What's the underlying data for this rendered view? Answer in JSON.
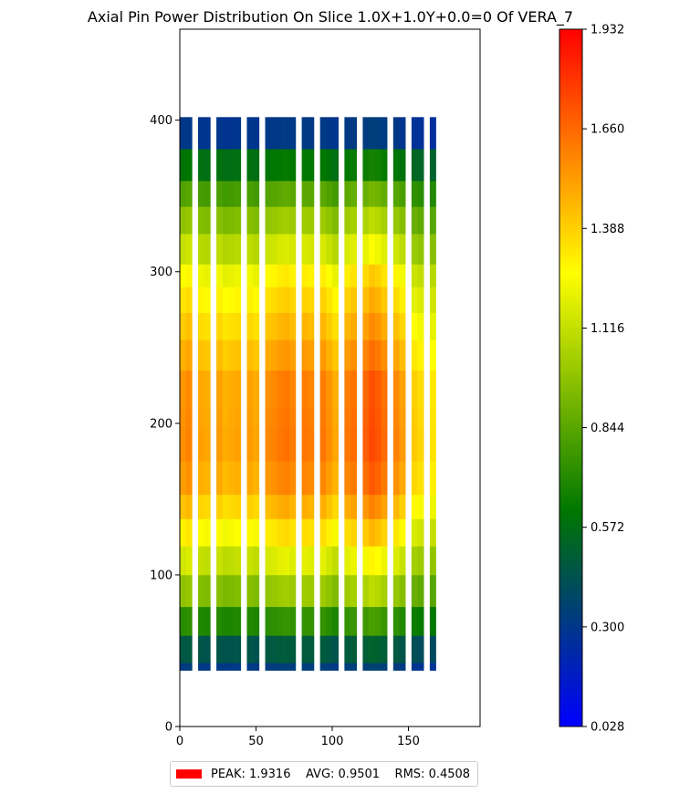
{
  "chart_data": {
    "type": "heatmap",
    "title": "Axial Pin Power Distribution On Slice 1.0X+1.0Y+0.0=0 Of VERA_7",
    "xlabel": "",
    "ylabel": "",
    "xlim": [
      0,
      197
    ],
    "ylim": [
      0,
      460
    ],
    "x_ticks": [
      "0",
      "50",
      "100",
      "150"
    ],
    "y_ticks": [
      "0",
      "100",
      "200",
      "300",
      "400"
    ],
    "colorbar": {
      "min": 0.028,
      "max": 1.932,
      "ticks": [
        "0.028",
        "0.300",
        "0.572",
        "0.844",
        "1.116",
        "1.388",
        "1.660",
        "1.932"
      ],
      "colors": [
        "#0000ff",
        "#007700",
        "#ffff00",
        "#ff0000"
      ]
    },
    "grid": false,
    "column_extent": [
      0,
      168
    ],
    "column_count": 42,
    "gap_columns": [
      2,
      5,
      10,
      13,
      19,
      22,
      26,
      29,
      34,
      37,
      40
    ],
    "column_factors": [
      1.0,
      1.02,
      1.0,
      0.97,
      0.96,
      1.0,
      0.98,
      0.95,
      0.96,
      0.97,
      1.0,
      0.98,
      0.96,
      1.0,
      1.01,
      1.02,
      1.04,
      1.05,
      1.03,
      1.0,
      1.04,
      1.03,
      1.0,
      1.04,
      1.0,
      0.96,
      1.0,
      1.04,
      1.06,
      1.0,
      1.08,
      1.12,
      1.1,
      1.06,
      1.0,
      1.02,
      0.98,
      1.0,
      0.9,
      0.88,
      1.0,
      0.86
    ],
    "axial_levels": [
      {
        "z0": 37,
        "z1": 42,
        "value": 0.32
      },
      {
        "z0": 42,
        "z1": 60,
        "value": 0.46
      },
      {
        "z0": 60,
        "z1": 79,
        "value": 0.72
      },
      {
        "z0": 79,
        "z1": 100,
        "value": 0.98
      },
      {
        "z0": 100,
        "z1": 119,
        "value": 1.15
      },
      {
        "z0": 119,
        "z1": 137,
        "value": 1.3
      },
      {
        "z0": 137,
        "z1": 153,
        "value": 1.42
      },
      {
        "z0": 153,
        "z1": 175,
        "value": 1.52
      },
      {
        "z0": 175,
        "z1": 198,
        "value": 1.56
      },
      {
        "z0": 198,
        "z1": 210,
        "value": 1.55
      },
      {
        "z0": 210,
        "z1": 235,
        "value": 1.54
      },
      {
        "z0": 235,
        "z1": 255,
        "value": 1.47
      },
      {
        "z0": 255,
        "z1": 273,
        "value": 1.4
      },
      {
        "z0": 273,
        "z1": 290,
        "value": 1.33
      },
      {
        "z0": 290,
        "z1": 305,
        "value": 1.26
      },
      {
        "z0": 305,
        "z1": 325,
        "value": 1.12
      },
      {
        "z0": 325,
        "z1": 343,
        "value": 0.98
      },
      {
        "z0": 343,
        "z1": 360,
        "value": 0.82
      },
      {
        "z0": 360,
        "z1": 381,
        "value": 0.6
      },
      {
        "z0": 381,
        "z1": 402,
        "value": 0.3
      }
    ],
    "legend": {
      "placement": "bottom-center",
      "swatch_color": "#ff0000",
      "text": "PEAK: 1.9316    AVG: 0.9501    RMS: 0.4508"
    }
  }
}
